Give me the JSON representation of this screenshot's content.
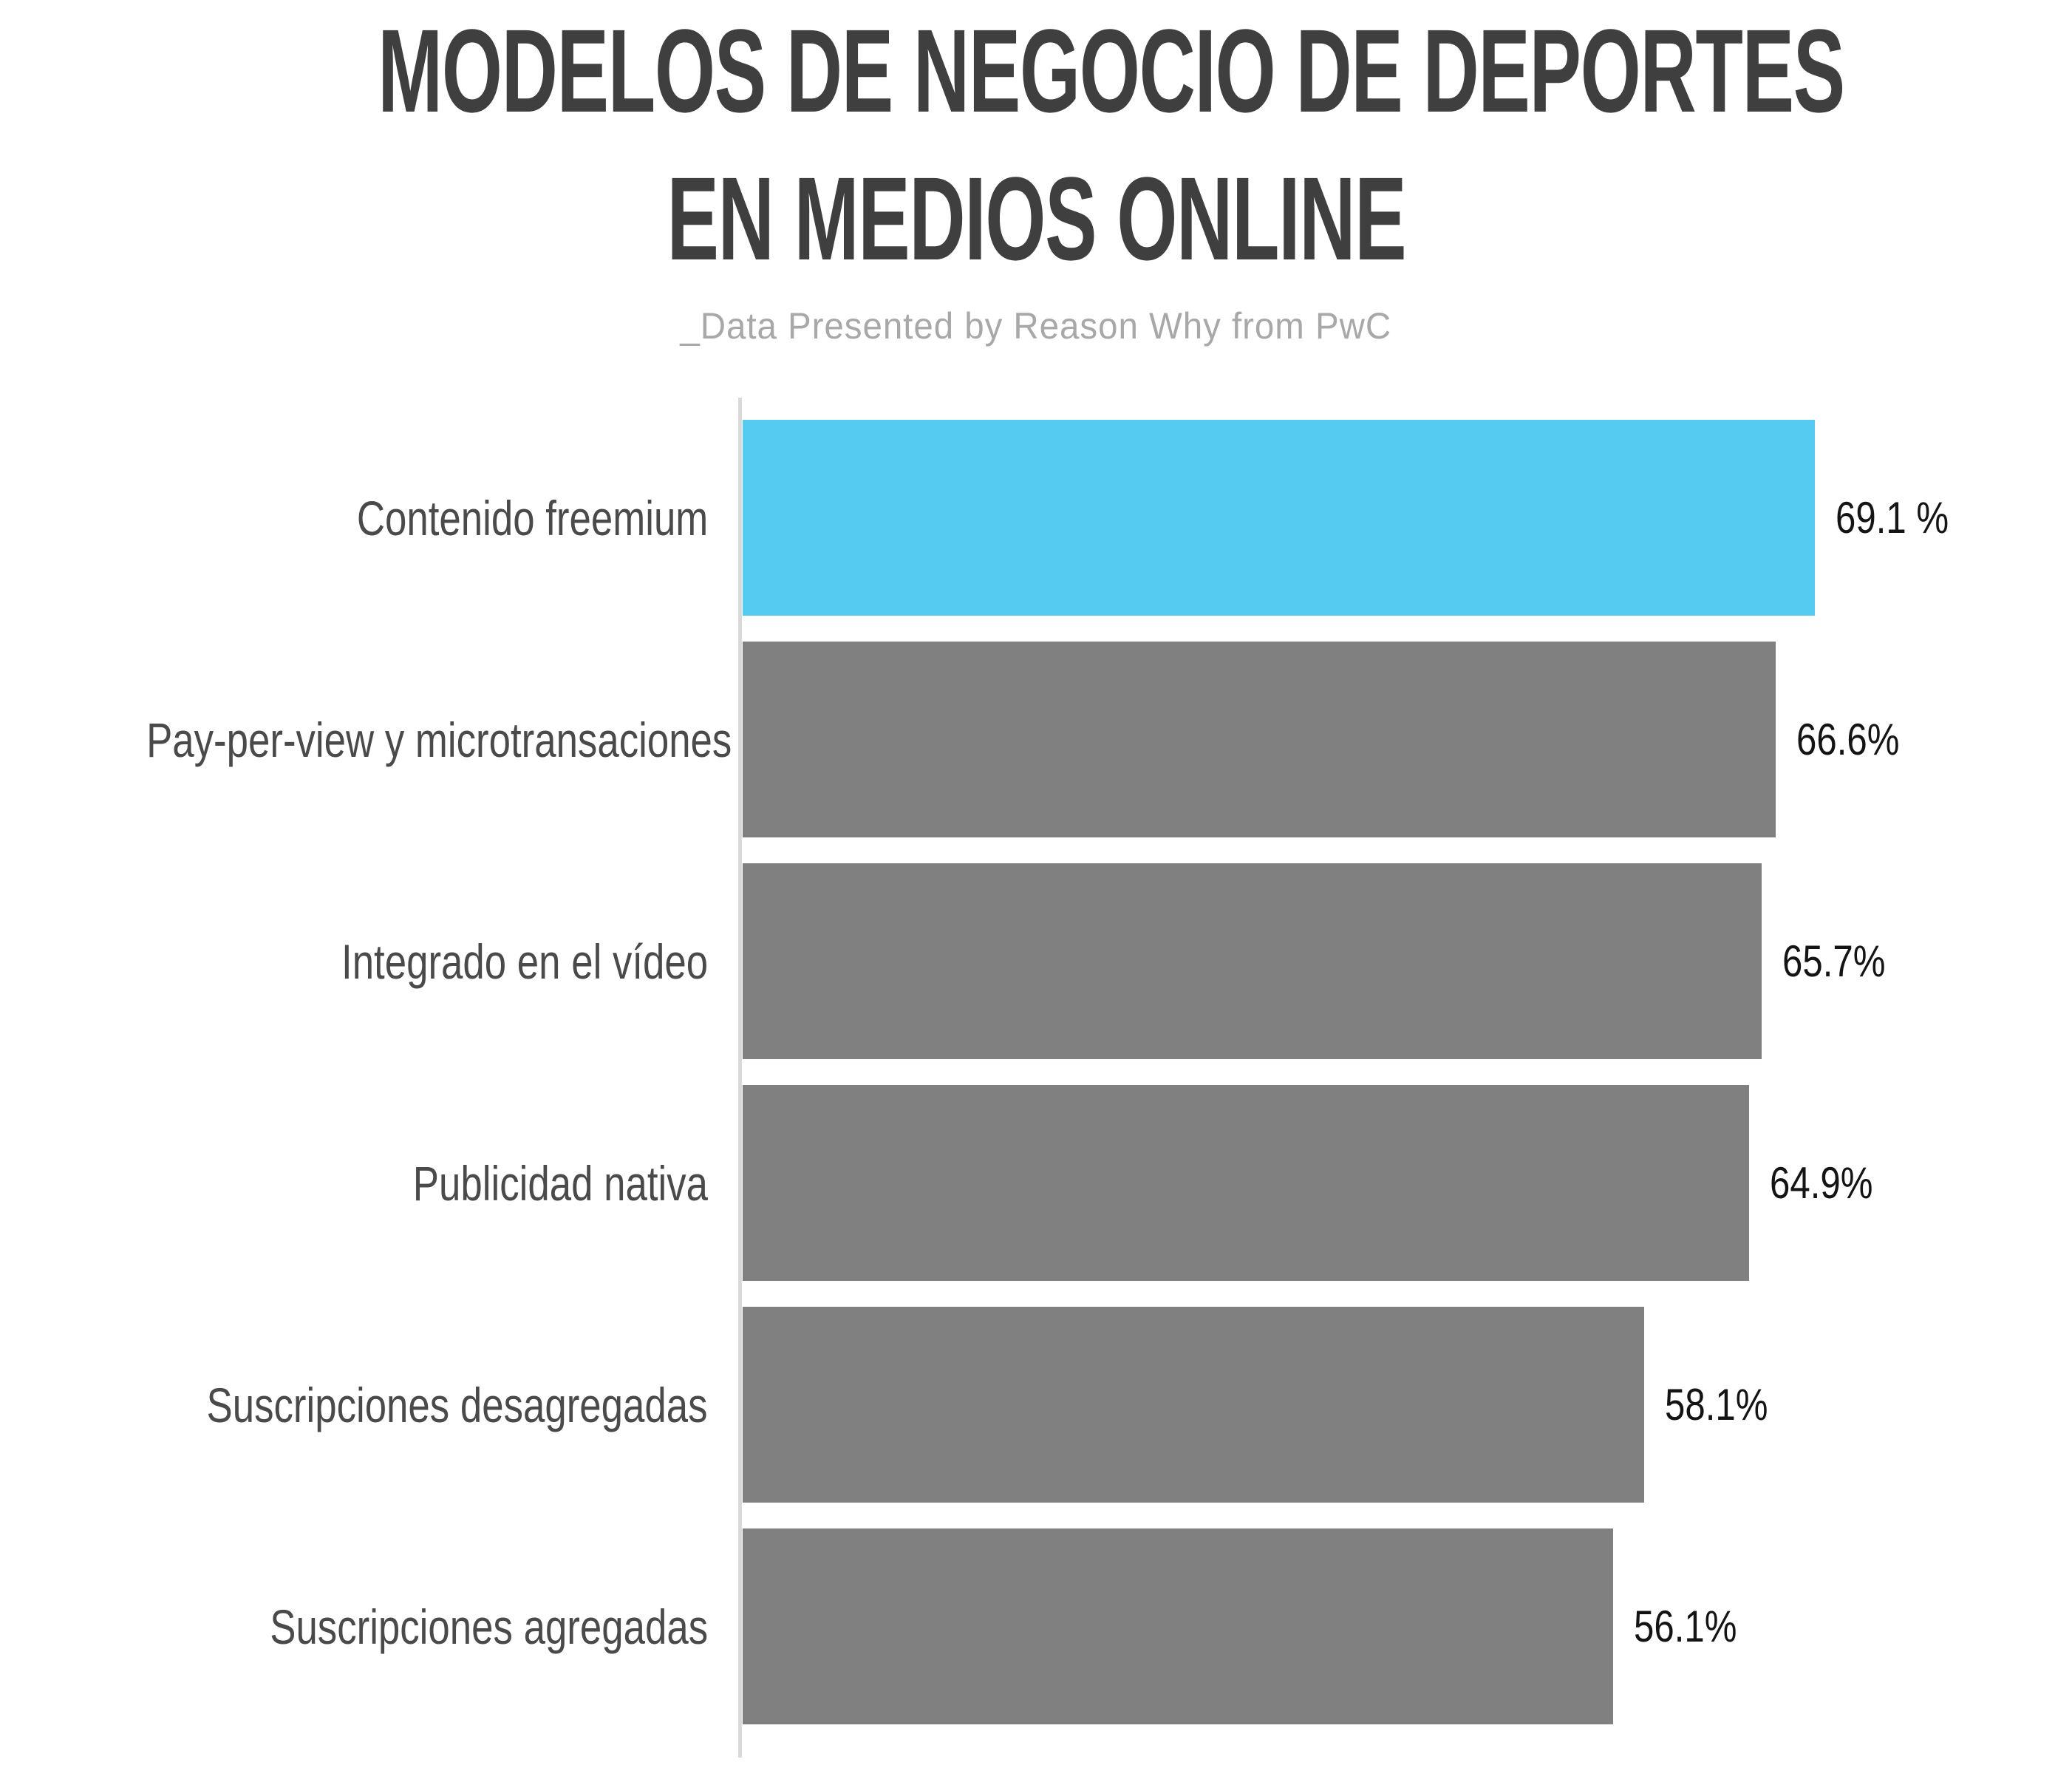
{
  "title": {
    "line1": "MODELOS DE NEGOCIO DE DEPORTES",
    "line2": "EN MEDIOS ONLINE"
  },
  "subtitle": "_Data Presented by Reason Why from PwC",
  "chart_data": {
    "type": "bar",
    "orientation": "horizontal",
    "title": "MODELOS DE NEGOCIO DE DEPORTES EN MEDIOS ONLINE",
    "subtitle": "_Data Presented by Reason Why from PwC",
    "categories": [
      "Contenido freemium",
      "Pay-per-view y microtransaciones",
      "Integrado en el vídeo",
      "Publicidad nativa",
      "Suscripciones desagregadas",
      "Suscripciones agregadas"
    ],
    "values": [
      69.1,
      66.6,
      65.7,
      64.9,
      58.1,
      56.1
    ],
    "value_labels": [
      "69.1 %",
      "66.6%",
      "65.7%",
      "64.9%",
      "58.1%",
      "56.1%"
    ],
    "unit": "%",
    "xlabel": "",
    "ylabel": "",
    "xlim": [
      0,
      85.7
    ],
    "grid": false,
    "legend": false,
    "highlight_index": 0,
    "colors": {
      "highlight": "#56CBF2",
      "default": "#808080",
      "axis_line": "#D9D9D9",
      "title": "#3F3F3F",
      "subtitle": "#A8A8A8",
      "category_label": "#4A4A4A",
      "value_label": "#141414"
    }
  }
}
